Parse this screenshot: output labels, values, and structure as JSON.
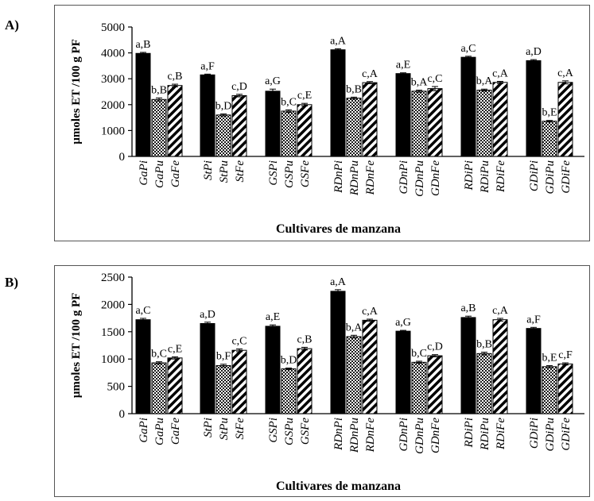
{
  "figure": {
    "cultivars_label": "Cultivares de manzana",
    "groups": [
      "Ga",
      "St",
      "GS",
      "RDn",
      "GDn",
      "RDi",
      "GDi"
    ],
    "suffixes": [
      "Pi",
      "Pu",
      "Fe"
    ],
    "bar_styles": [
      "solid",
      "dots",
      "stripes"
    ]
  },
  "panels": [
    {
      "label": "A)",
      "ylabel": "µmoles ET /100 g PF"
    },
    {
      "label": "B)",
      "ylabel": "µmoles ET /100 g PF"
    }
  ],
  "chart_data": [
    {
      "type": "bar",
      "panel": "A)",
      "xlabel": "Cultivares de manzana",
      "ylabel": "µmoles ET /100 g PF",
      "ylim": [
        0,
        5000
      ],
      "yticks": [
        0,
        1000,
        2000,
        3000,
        4000,
        5000
      ],
      "categories": [
        "GaPi",
        "GaPu",
        "GaFe",
        "StPi",
        "StPu",
        "StFe",
        "GSPi",
        "GSPu",
        "GSFe",
        "RDnPi",
        "RDnPu",
        "RDnFe",
        "GDnPi",
        "GDnPu",
        "GDnFe",
        "RDiPi",
        "RDiPu",
        "RDiFe",
        "GDiPi",
        "GDiPu",
        "GDiFe"
      ],
      "values": [
        3980,
        2200,
        2740,
        3150,
        1600,
        2350,
        2520,
        1750,
        2000,
        4120,
        2250,
        2850,
        3200,
        2520,
        2620,
        3830,
        2560,
        2860,
        3700,
        1360,
        2860
      ],
      "errors": [
        40,
        60,
        50,
        30,
        40,
        50,
        80,
        50,
        50,
        40,
        40,
        40,
        30,
        40,
        80,
        40,
        40,
        40,
        40,
        30,
        60
      ],
      "labels": [
        "a,B",
        "b,B",
        "c,B",
        "a,F",
        "b,D",
        "c,D",
        "a,G",
        "b,C",
        "c,E",
        "a,A",
        "b,B",
        "c,A",
        "a,E",
        "b,A",
        "c,C",
        "a,C",
        "b,A",
        "c,A",
        "a,D",
        "b,E",
        "c,A"
      ]
    },
    {
      "type": "bar",
      "panel": "B)",
      "xlabel": "Cultivares de manzana",
      "ylabel": "µmoles ET /100 g PF",
      "ylim": [
        0,
        2500
      ],
      "yticks": [
        0,
        500,
        1000,
        1500,
        2000,
        2500
      ],
      "categories": [
        "GaPi",
        "GaPu",
        "GaFe",
        "StPi",
        "StPu",
        "StFe",
        "GSPi",
        "GSPu",
        "GSFe",
        "RDnPi",
        "RDnPu",
        "RDnFe",
        "GDnPi",
        "GDnPu",
        "GDnFe",
        "RDiPi",
        "RDiPu",
        "RDiFe",
        "GDiPi",
        "GDiPu",
        "GDiFe"
      ],
      "values": [
        1720,
        930,
        1020,
        1650,
        880,
        1160,
        1600,
        820,
        1190,
        2240,
        1410,
        1710,
        1510,
        940,
        1060,
        1760,
        1100,
        1720,
        1560,
        860,
        910
      ],
      "errors": [
        25,
        20,
        20,
        25,
        25,
        25,
        25,
        15,
        25,
        30,
        25,
        20,
        15,
        20,
        20,
        25,
        25,
        25,
        20,
        20,
        20
      ],
      "labels": [
        "a,C",
        "b,C",
        "c,E",
        "a,D",
        "b,F",
        "c,C",
        "a,E",
        "b,D",
        "c,B",
        "a,A",
        "b,A",
        "c,A",
        "a,G",
        "b,C",
        "c,D",
        "a,B",
        "b,B",
        "c,A",
        "a,F",
        "b,E",
        "c,F"
      ]
    }
  ]
}
